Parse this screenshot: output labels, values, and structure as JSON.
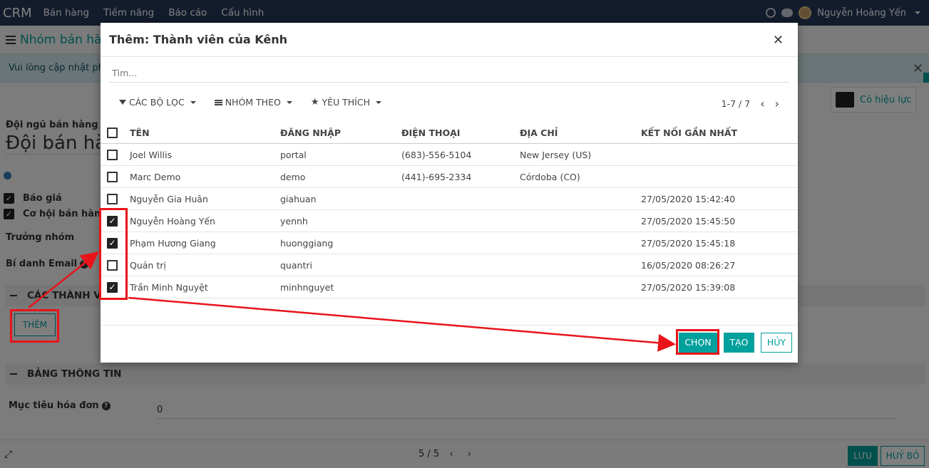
{
  "navbar": {
    "brand": "CRM",
    "menu": [
      "Bán hàng",
      "Tiềm năng",
      "Báo cáo",
      "Cấu hình"
    ],
    "user": "Nguyễn Hoàng Yến",
    "bg_color": "#263859"
  },
  "page": {
    "breadcrumb": "Nhóm bán hàng",
    "alert": "Vui lòng cập nhật phầ",
    "archive_label": "Có hiệu lực",
    "team_label": "Đội ngũ bán hàng",
    "team_name": "Đội bán hàng",
    "check_quotes": "Báo giá",
    "check_opportunities": "Cơ hội bán hàng",
    "leader_label": "Trưởng nhóm",
    "email_alias_label": "Bí danh Email",
    "members_section": "CÁC THÀNH VI",
    "add_button": "THÊM",
    "info_section": "BẢNG THÔNG TIN",
    "invoice_goal_label": "Mục tiêu hóa đơn",
    "invoice_goal_value": "0",
    "pager": "5 / 5",
    "save_button": "LƯU",
    "discard_button": "HUỶ BỎ"
  },
  "modal": {
    "title": "Thêm: Thành viên của Kênh",
    "search_placeholder": "Tìm...",
    "filters": "CÁC BỘ LỌC",
    "group_by": "NHÓM THEO",
    "favorites": "YÊU THÍCH",
    "pager": "1-7 / 7",
    "columns": {
      "name": "TÊN",
      "login": "ĐĂNG NHẬP",
      "phone": "ĐIỆN THOẠI",
      "address": "ĐỊA CHỈ",
      "last_connection": "KẾT NỐI GẦN NHẤT"
    },
    "rows": [
      {
        "name": "Joel Willis",
        "login": "portal",
        "phone": "(683)-556-5104",
        "address": "New Jersey (US)",
        "last": "",
        "checked": false
      },
      {
        "name": "Marc Demo",
        "login": "demo",
        "phone": "(441)-695-2334",
        "address": "Córdoba (CO)",
        "last": "",
        "checked": false
      },
      {
        "name": "Nguyễn Gia Huân",
        "login": "giahuan",
        "phone": "",
        "address": "",
        "last": "27/05/2020 15:42:40",
        "checked": false
      },
      {
        "name": "Nguyễn Hoàng Yến",
        "login": "yennh",
        "phone": "",
        "address": "",
        "last": "27/05/2020 15:45:50",
        "checked": true
      },
      {
        "name": "Phạm Hương Giang",
        "login": "huonggiang",
        "phone": "",
        "address": "",
        "last": "27/05/2020 15:45:18",
        "checked": true
      },
      {
        "name": "Quản trị",
        "login": "quantri",
        "phone": "",
        "address": "",
        "last": "16/05/2020 08:26:27",
        "checked": false
      },
      {
        "name": "Trần Minh Nguyệt",
        "login": "minhnguyet",
        "phone": "",
        "address": "",
        "last": "27/05/2020 15:39:08",
        "checked": true
      }
    ],
    "buttons": {
      "select": "CHỌN",
      "create": "TẠO",
      "cancel": "HỦY"
    }
  },
  "colors": {
    "accent": "#00a09d",
    "annotation": "#e8141a"
  }
}
